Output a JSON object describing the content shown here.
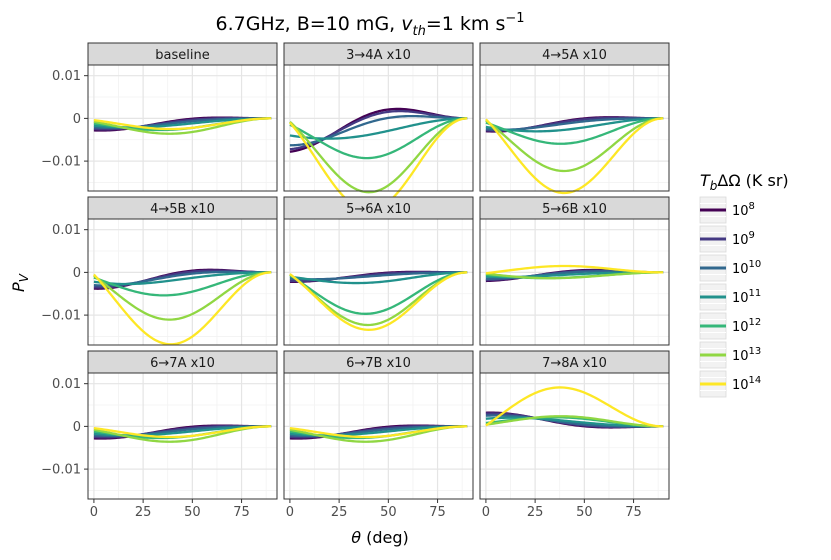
{
  "chart_data": {
    "type": "line",
    "title_main": "6.7GHz, B=10 mG, ",
    "title_v": "v",
    "title_th": "th",
    "title_rest": "=1 km s",
    "title_exp": "−1",
    "xlabel_theta": "θ",
    "xlabel_unit": " (deg)",
    "ylabel_P": "P",
    "ylabel_V": "V",
    "xlim": [
      -3,
      93
    ],
    "ylim": [
      -0.017,
      0.0125
    ],
    "x_ticks": [
      0,
      25,
      50,
      75
    ],
    "x_tick_labels": [
      "0",
      "25",
      "50",
      "75"
    ],
    "y_ticks": [
      0.01,
      0,
      -0.01
    ],
    "y_tick_labels": [
      "0.01",
      "0",
      "−0.01"
    ],
    "legend": {
      "title_T": "T",
      "title_b": "b",
      "title_rest": "ΔΩ (K sr)",
      "entries": [
        {
          "base": "10",
          "exp": "8",
          "color": "#440154"
        },
        {
          "base": "10",
          "exp": "9",
          "color": "#443983"
        },
        {
          "base": "10",
          "exp": "10",
          "color": "#31688e"
        },
        {
          "base": "10",
          "exp": "11",
          "color": "#21918c"
        },
        {
          "base": "10",
          "exp": "12",
          "color": "#35b779"
        },
        {
          "base": "10",
          "exp": "13",
          "color": "#90d743"
        },
        {
          "base": "10",
          "exp": "14",
          "color": "#fde725"
        }
      ]
    },
    "panels": [
      {
        "label": "baseline",
        "curves": [
          {
            "a": -0.0028,
            "b": 0.0015,
            "c": -0.0006
          },
          {
            "a": -0.0025,
            "b": 0.0012,
            "c": -0.0007
          },
          {
            "a": -0.0021,
            "b": 0.0008,
            "c": -0.0009
          },
          {
            "a": -0.0017,
            "b": 0.0003,
            "c": -0.0012
          },
          {
            "a": -0.0012,
            "b": -0.0006,
            "c": -0.0018
          },
          {
            "a": -0.0008,
            "b": -0.0015,
            "c": -0.0022
          },
          {
            "a": -0.0004,
            "b": -0.001,
            "c": -0.0017
          }
        ]
      },
      {
        "label": "3→4A x10",
        "curves": [
          {
            "a": -0.0078,
            "b": 0.0045,
            "c": 0.0015
          },
          {
            "a": -0.0072,
            "b": 0.004,
            "c": 0.001
          },
          {
            "a": -0.0063,
            "b": 0.0028,
            "c": 0.0
          },
          {
            "a": -0.004,
            "b": 0.0,
            "c": -0.002
          },
          {
            "a": -0.0015,
            "b": -0.004,
            "c": -0.006
          },
          {
            "a": -0.0008,
            "b": -0.008,
            "c": -0.012
          },
          {
            "a": -0.001,
            "b": -0.01,
            "c": -0.015
          }
        ]
      },
      {
        "label": "4→5A x10",
        "curves": [
          {
            "a": -0.003,
            "b": 0.0018,
            "c": -0.0008
          },
          {
            "a": -0.0028,
            "b": 0.0015,
            "c": -0.0008
          },
          {
            "a": -0.0025,
            "b": 0.001,
            "c": -0.001
          },
          {
            "a": -0.002,
            "b": 0.0,
            "c": -0.002
          },
          {
            "a": -0.001,
            "b": -0.002,
            "c": -0.0045
          },
          {
            "a": -0.0005,
            "b": -0.005,
            "c": -0.0095
          },
          {
            "a": -0.0002,
            "b": -0.007,
            "c": -0.014
          }
        ]
      },
      {
        "label": "4→5B x10",
        "curves": [
          {
            "a": -0.0038,
            "b": 0.0023,
            "c": -0.0004
          },
          {
            "a": -0.0035,
            "b": 0.002,
            "c": -0.0005
          },
          {
            "a": -0.003,
            "b": 0.0015,
            "c": -0.0008
          },
          {
            "a": -0.0022,
            "b": 0.0008,
            "c": -0.0018
          },
          {
            "a": -0.0012,
            "b": -0.001,
            "c": -0.0048
          },
          {
            "a": -0.0008,
            "b": -0.0035,
            "c": -0.0095
          },
          {
            "a": -0.0005,
            "b": -0.006,
            "c": -0.0142
          }
        ]
      },
      {
        "label": "5→6A x10",
        "curves": [
          {
            "a": -0.0022,
            "b": 0.001,
            "c": -0.0002
          },
          {
            "a": -0.002,
            "b": 0.0008,
            "c": -0.0003
          },
          {
            "a": -0.0015,
            "b": 0.0004,
            "c": -0.0006
          },
          {
            "a": -0.001,
            "b": -0.0005,
            "c": -0.0018
          },
          {
            "a": -0.0006,
            "b": -0.003,
            "c": -0.0085
          },
          {
            "a": -0.0005,
            "b": -0.005,
            "c": -0.0095
          },
          {
            "a": -0.0004,
            "b": -0.006,
            "c": -0.0098
          }
        ]
      },
      {
        "label": "5→6B x10",
        "curves": [
          {
            "a": -0.002,
            "b": 0.0012,
            "c": 0.0003
          },
          {
            "a": -0.0018,
            "b": 0.001,
            "c": 0.0002
          },
          {
            "a": -0.0015,
            "b": 0.0008,
            "c": 0.0
          },
          {
            "a": -0.001,
            "b": 0.0004,
            "c": -0.0005
          },
          {
            "a": -0.0006,
            "b": 0.0,
            "c": -0.0012
          },
          {
            "a": -0.0003,
            "b": 0.0,
            "c": -0.0015
          },
          {
            "a": -0.0002,
            "b": 0.0005,
            "c": 0.0015
          }
        ]
      },
      {
        "label": "6→7A x10",
        "curves": [
          {
            "a": -0.0028,
            "b": 0.0015,
            "c": -0.0006
          },
          {
            "a": -0.0025,
            "b": 0.0012,
            "c": -0.0007
          },
          {
            "a": -0.0021,
            "b": 0.0008,
            "c": -0.0009
          },
          {
            "a": -0.0017,
            "b": 0.0003,
            "c": -0.0012
          },
          {
            "a": -0.0012,
            "b": -0.0006,
            "c": -0.0018
          },
          {
            "a": -0.0008,
            "b": -0.0015,
            "c": -0.0022
          },
          {
            "a": -0.0004,
            "b": -0.001,
            "c": -0.0017
          }
        ]
      },
      {
        "label": "6→7B x10",
        "curves": [
          {
            "a": -0.0028,
            "b": 0.0015,
            "c": -0.0006
          },
          {
            "a": -0.0025,
            "b": 0.0012,
            "c": -0.0007
          },
          {
            "a": -0.0021,
            "b": 0.0008,
            "c": -0.0009
          },
          {
            "a": -0.0017,
            "b": 0.0003,
            "c": -0.0012
          },
          {
            "a": -0.0012,
            "b": -0.0006,
            "c": -0.0018
          },
          {
            "a": -0.0008,
            "b": -0.0015,
            "c": -0.0022
          },
          {
            "a": -0.0004,
            "b": -0.001,
            "c": -0.0017
          }
        ]
      },
      {
        "label": "7→8A x10",
        "curves": [
          {
            "a": 0.0032,
            "b": -0.0016,
            "c": 0.0004
          },
          {
            "a": 0.003,
            "b": -0.0014,
            "c": 0.0005
          },
          {
            "a": 0.0025,
            "b": -0.001,
            "c": 0.0006
          },
          {
            "a": 0.0018,
            "b": -0.0005,
            "c": 0.001
          },
          {
            "a": 0.0008,
            "b": 0.0005,
            "c": 0.0015
          },
          {
            "a": 0.0004,
            "b": 0.0008,
            "c": 0.0018
          },
          {
            "a": 0.0002,
            "b": 0.002,
            "c": 0.0093
          }
        ]
      }
    ]
  }
}
